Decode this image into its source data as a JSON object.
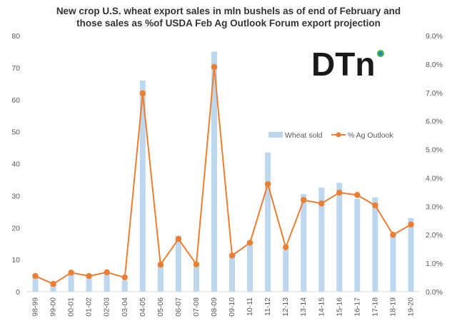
{
  "chart_data": {
    "type": "bar",
    "title_lines": [
      "New crop U.S. wheat export sales in mln bushels as of end of February and",
      "those sales as %of USDA Feb Ag Outlook Forum export projection"
    ],
    "categories": [
      "98-99",
      "99-00",
      "00-01",
      "01-02",
      "02-03",
      "03-04",
      "04-05",
      "05-06",
      "06-07",
      "07-08",
      "08-09",
      "09-10",
      "10-11",
      "11-12",
      "12-13",
      "13-14",
      "14-15",
      "15-16",
      "16-17",
      "17-18",
      "18-19",
      "19-20"
    ],
    "series": [
      {
        "name": "Wheat sold",
        "type": "bar",
        "axis": "left",
        "color": "#bdd7ee",
        "values": [
          4.5,
          2.5,
          6,
          5,
          6,
          3.5,
          66,
          8.5,
          17.5,
          8,
          75,
          11.5,
          14.5,
          43.5,
          13,
          30.5,
          32.5,
          34,
          29,
          29.5,
          17.5,
          23
        ]
      },
      {
        "name": "% Ag Outlook",
        "type": "line",
        "axis": "right",
        "color": "#ed7d31",
        "values": [
          0.55,
          0.27,
          0.67,
          0.55,
          0.68,
          0.5,
          6.97,
          0.95,
          1.85,
          0.96,
          7.9,
          1.27,
          1.72,
          3.78,
          1.56,
          3.22,
          3.1,
          3.48,
          3.4,
          3.03,
          2.0,
          2.36
        ]
      }
    ],
    "y_left": {
      "min": 0,
      "max": 80,
      "step": 10,
      "ticks": [
        "0",
        "10",
        "20",
        "30",
        "40",
        "50",
        "60",
        "70",
        "80"
      ]
    },
    "y_right": {
      "min": 0,
      "max": 9,
      "step": 1,
      "ticks": [
        "0.0%",
        "1.0%",
        "2.0%",
        "3.0%",
        "4.0%",
        "5.0%",
        "6.0%",
        "7.0%",
        "8.0%",
        "9.0%"
      ]
    },
    "grid": false,
    "legend_position": "right-middle"
  },
  "logo": {
    "text": "DTn",
    "colors": [
      "#1a1a1a",
      "#39b54a",
      "#2e7fc2"
    ]
  }
}
